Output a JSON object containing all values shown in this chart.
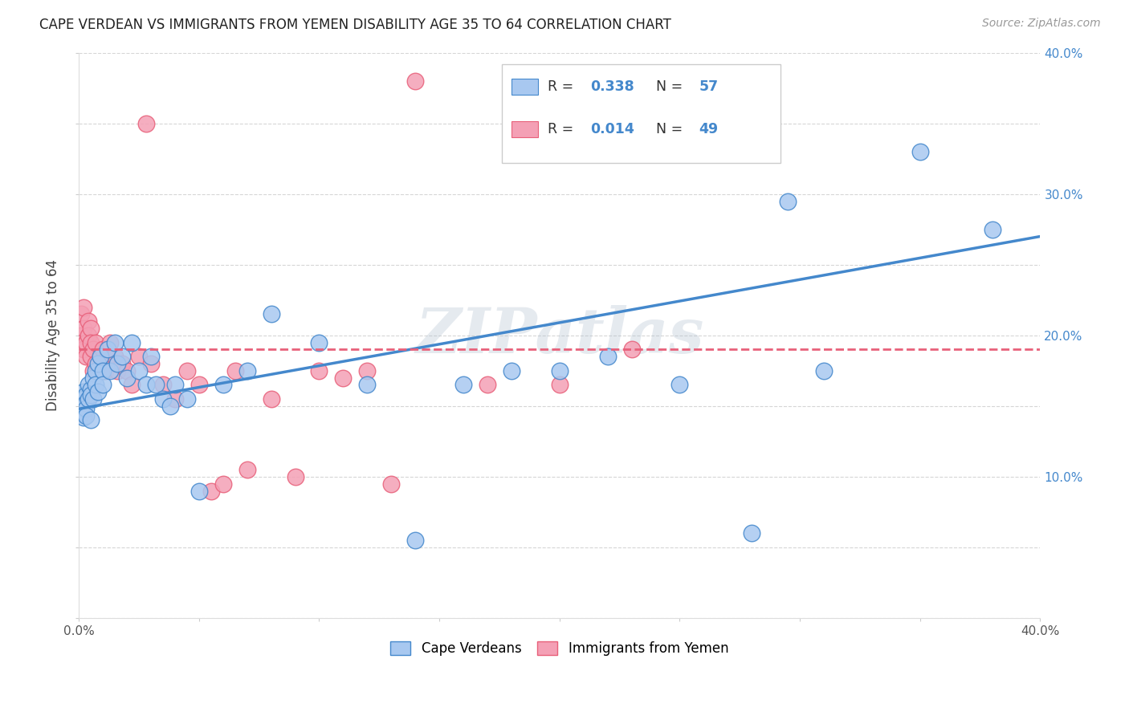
{
  "title": "CAPE VERDEAN VS IMMIGRANTS FROM YEMEN DISABILITY AGE 35 TO 64 CORRELATION CHART",
  "source": "Source: ZipAtlas.com",
  "ylabel": "Disability Age 35 to 64",
  "xmin": 0.0,
  "xmax": 0.4,
  "ymin": 0.0,
  "ymax": 0.4,
  "x_ticks": [
    0.0,
    0.05,
    0.1,
    0.15,
    0.2,
    0.25,
    0.3,
    0.35,
    0.4
  ],
  "y_ticks": [
    0.0,
    0.05,
    0.1,
    0.15,
    0.2,
    0.25,
    0.3,
    0.35,
    0.4
  ],
  "x_tick_labels_bottom": [
    "0.0%",
    "",
    "",
    "",
    "",
    "",
    "",
    "",
    "40.0%"
  ],
  "right_y_tick_labels": [
    "",
    "",
    "10.0%",
    "",
    "20.0%",
    "",
    "30.0%",
    "",
    "40.0%"
  ],
  "watermark": "ZIPatlas",
  "blue_color": "#A8C8F0",
  "pink_color": "#F4A0B5",
  "blue_line_color": "#4488CC",
  "pink_line_color": "#E8607A",
  "r_n_color": "#4488CC",
  "blue_r": "0.338",
  "blue_n": "57",
  "pink_r": "0.014",
  "pink_n": "49",
  "grid_color": "#CCCCCC",
  "cape_verdean_x": [
    0.001,
    0.001,
    0.001,
    0.002,
    0.002,
    0.002,
    0.002,
    0.003,
    0.003,
    0.003,
    0.003,
    0.004,
    0.004,
    0.005,
    0.005,
    0.005,
    0.006,
    0.006,
    0.007,
    0.007,
    0.008,
    0.008,
    0.009,
    0.01,
    0.01,
    0.012,
    0.013,
    0.015,
    0.016,
    0.018,
    0.02,
    0.022,
    0.025,
    0.028,
    0.03,
    0.032,
    0.035,
    0.038,
    0.04,
    0.045,
    0.05,
    0.06,
    0.07,
    0.08,
    0.1,
    0.12,
    0.14,
    0.16,
    0.18,
    0.2,
    0.22,
    0.25,
    0.28,
    0.295,
    0.31,
    0.35,
    0.38
  ],
  "cape_verdean_y": [
    0.155,
    0.15,
    0.145,
    0.16,
    0.155,
    0.148,
    0.142,
    0.158,
    0.152,
    0.148,
    0.143,
    0.165,
    0.155,
    0.162,
    0.158,
    0.14,
    0.17,
    0.155,
    0.175,
    0.165,
    0.18,
    0.16,
    0.185,
    0.175,
    0.165,
    0.19,
    0.175,
    0.195,
    0.18,
    0.185,
    0.17,
    0.195,
    0.175,
    0.165,
    0.185,
    0.165,
    0.155,
    0.15,
    0.165,
    0.155,
    0.09,
    0.165,
    0.175,
    0.215,
    0.195,
    0.165,
    0.055,
    0.165,
    0.175,
    0.175,
    0.185,
    0.165,
    0.06,
    0.295,
    0.175,
    0.33,
    0.275
  ],
  "yemen_x": [
    0.001,
    0.001,
    0.002,
    0.002,
    0.002,
    0.003,
    0.003,
    0.004,
    0.004,
    0.005,
    0.005,
    0.005,
    0.006,
    0.006,
    0.007,
    0.007,
    0.008,
    0.009,
    0.01,
    0.01,
    0.011,
    0.012,
    0.013,
    0.015,
    0.016,
    0.018,
    0.02,
    0.022,
    0.025,
    0.028,
    0.03,
    0.035,
    0.04,
    0.045,
    0.05,
    0.055,
    0.06,
    0.065,
    0.07,
    0.08,
    0.09,
    0.1,
    0.11,
    0.12,
    0.13,
    0.14,
    0.17,
    0.2,
    0.23
  ],
  "yemen_y": [
    0.215,
    0.2,
    0.22,
    0.205,
    0.19,
    0.195,
    0.185,
    0.21,
    0.2,
    0.205,
    0.195,
    0.185,
    0.19,
    0.175,
    0.195,
    0.18,
    0.175,
    0.185,
    0.19,
    0.18,
    0.175,
    0.185,
    0.195,
    0.185,
    0.175,
    0.18,
    0.175,
    0.165,
    0.185,
    0.35,
    0.18,
    0.165,
    0.155,
    0.175,
    0.165,
    0.09,
    0.095,
    0.175,
    0.105,
    0.155,
    0.1,
    0.175,
    0.17,
    0.175,
    0.095,
    0.38,
    0.165,
    0.165,
    0.19
  ],
  "blue_line_start_y": 0.148,
  "blue_line_end_y": 0.27,
  "pink_line_start_y": 0.19,
  "pink_line_end_y": 0.19
}
